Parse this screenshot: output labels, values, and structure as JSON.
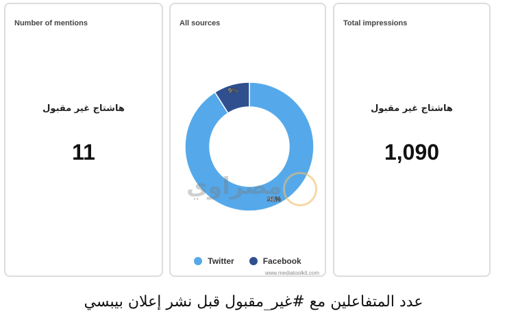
{
  "cards": [
    {
      "title": "Number of mentions",
      "hashtag": "هاشتاج غير مقبول",
      "value": "11"
    },
    {
      "title": "All sources"
    },
    {
      "title": "Total impressions",
      "hashtag": "هاشتاج غير مقبول",
      "value": "1,090"
    }
  ],
  "chart_data": {
    "type": "pie",
    "variant": "donut",
    "title": "All sources",
    "categories": [
      "Twitter",
      "Facebook"
    ],
    "values": [
      91,
      9
    ],
    "labels": [
      "91%",
      "9%"
    ],
    "colors": [
      "#55a9ea",
      "#2f4f8f"
    ],
    "legend": "bottom"
  },
  "credit": "www.mediatoolkit.com",
  "watermark": "مصراوي",
  "caption": "عدد المتفاعلين مع #غير_مقبول قبل نشر إعلان بيبسي"
}
